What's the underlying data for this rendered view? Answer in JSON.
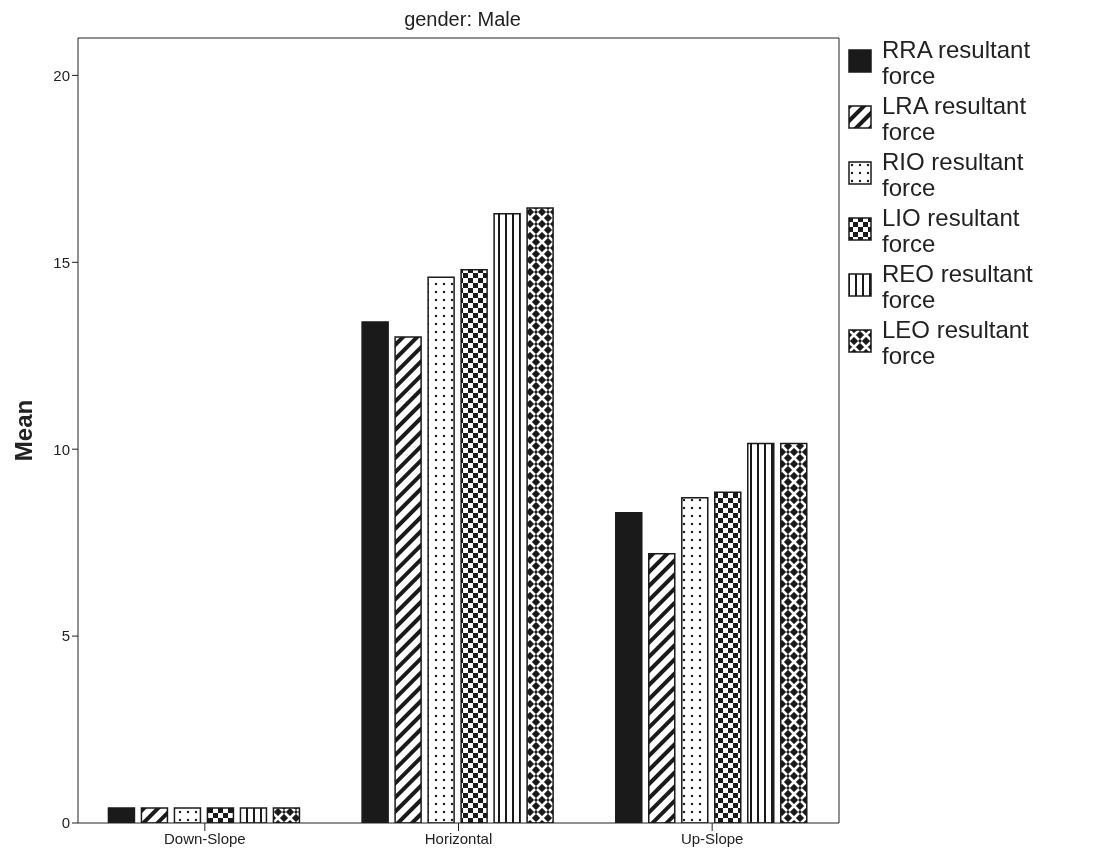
{
  "chart_data": {
    "type": "bar",
    "title": "gender: Male",
    "ylabel": "Mean",
    "categories": [
      "Down-Slope",
      "Horizontal",
      "Up-Slope"
    ],
    "series": [
      {
        "name": "RRA resultant force",
        "color": "#1a1a1a",
        "values": [
          0.4,
          13.4,
          8.3
        ]
      },
      {
        "name": "LRA resultant force",
        "color": "#1a1a1a",
        "values": [
          0.4,
          13.0,
          7.2
        ]
      },
      {
        "name": "RIO resultant force",
        "color": "#1a1a1a",
        "values": [
          0.4,
          14.6,
          8.7
        ]
      },
      {
        "name": "LIO resultant force",
        "color": "#1a1a1a",
        "values": [
          0.4,
          14.8,
          8.85
        ]
      },
      {
        "name": "REO resultant force",
        "color": "#1a1a1a",
        "values": [
          0.4,
          16.3,
          10.15
        ]
      },
      {
        "name": "LEO resultant force",
        "color": "#1a1a1a",
        "values": [
          0.4,
          16.45,
          10.15
        ]
      }
    ],
    "ylim": [
      0,
      21
    ],
    "yticks": [
      0,
      5,
      10,
      15,
      20
    ],
    "grid": false,
    "legend": "right"
  }
}
